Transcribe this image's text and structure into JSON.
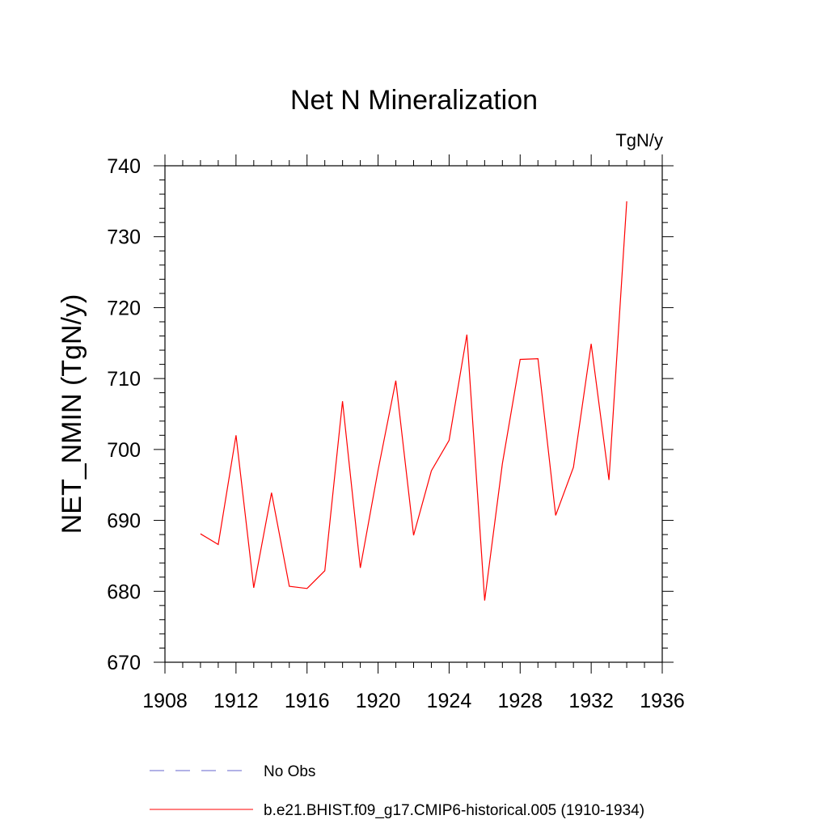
{
  "chart_data": {
    "type": "line",
    "title": "Net N Mineralization",
    "units_label": "TgN/y",
    "ylabel": "NET_NMIN  (TgN/y)",
    "xlabel": "",
    "xlim": [
      1908,
      1936
    ],
    "ylim": [
      670,
      740
    ],
    "x_ticks": [
      1908,
      1912,
      1916,
      1920,
      1924,
      1928,
      1932,
      1936
    ],
    "y_ticks": [
      670,
      680,
      690,
      700,
      710,
      720,
      730,
      740
    ],
    "grid": false,
    "legend_position": "bottom",
    "series": [
      {
        "name": "b.e21.BHIST.f09_g17.CMIP6-historical.005 (1910-1934)",
        "color": "#ff0000",
        "style": "solid",
        "x": [
          1910,
          1911,
          1912,
          1913,
          1914,
          1915,
          1916,
          1917,
          1918,
          1919,
          1920,
          1921,
          1922,
          1923,
          1924,
          1925,
          1926,
          1927,
          1928,
          1929,
          1930,
          1931,
          1932,
          1933,
          1934
        ],
        "y": [
          688.1,
          686.6,
          702.0,
          680.5,
          693.9,
          680.7,
          680.4,
          682.9,
          706.8,
          683.3,
          697.1,
          709.7,
          687.9,
          697.0,
          701.3,
          716.2,
          678.7,
          698.0,
          712.7,
          712.8,
          690.7,
          697.5,
          714.9,
          695.7,
          735.0
        ]
      }
    ],
    "legend": [
      {
        "label": "No Obs",
        "color": "#6666cc",
        "style": "dashed"
      },
      {
        "label": "b.e21.BHIST.f09_g17.CMIP6-historical.005 (1910-1934)",
        "color": "#ff0000",
        "style": "solid"
      }
    ]
  }
}
